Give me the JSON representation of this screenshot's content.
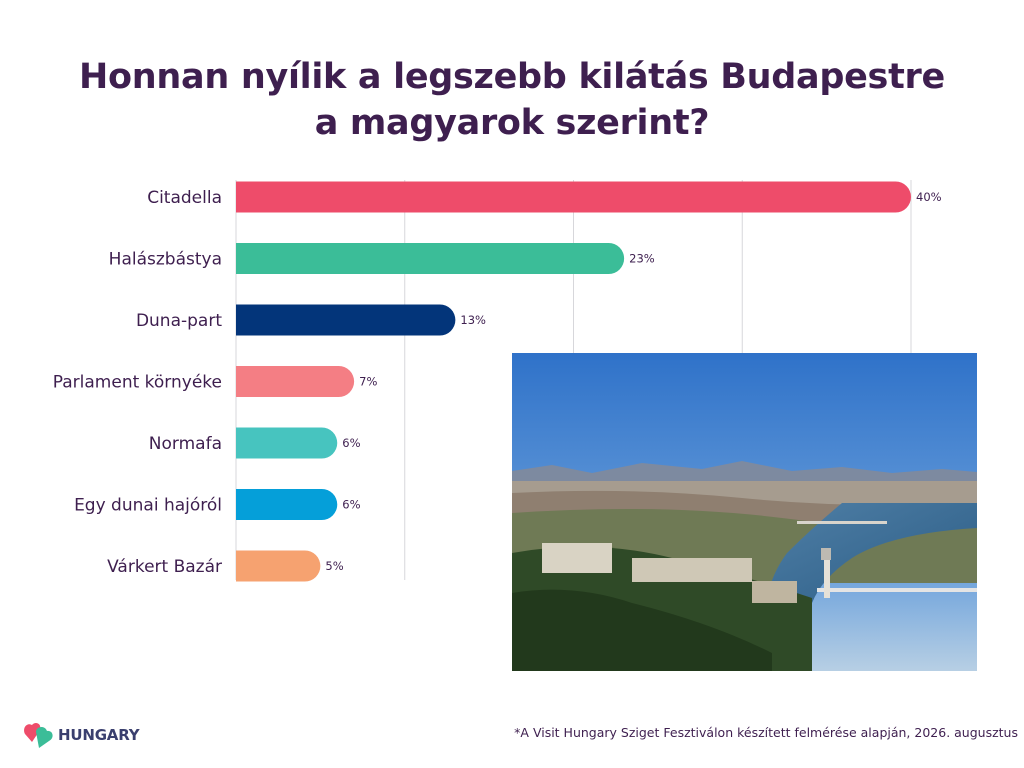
{
  "title": {
    "line1": "Honnan nyílik a legszebb kilátás Budapestre",
    "line2": "a magyarok szerint?"
  },
  "chart_data": {
    "type": "bar",
    "orientation": "horizontal",
    "categories": [
      "Citadella",
      "Halászbástya",
      "Duna-part",
      "Parlament környéke",
      "Normafa",
      "Egy dunai hajóról",
      "Várkert Bazár"
    ],
    "values": [
      40,
      23,
      13,
      7,
      6,
      6,
      5
    ],
    "value_labels": [
      "40%",
      "23%",
      "13%",
      "7%",
      "6%",
      "6%",
      "5%"
    ],
    "unit": "%",
    "bar_colors": [
      "#ee4c6a",
      "#3bbd98",
      "#03357a",
      "#f47e84",
      "#47c4bf",
      "#059fd9",
      "#f6a270"
    ],
    "xlim": [
      0,
      40
    ],
    "grid": true,
    "legend": "none"
  },
  "photo": {
    "icon": "citadella-panorama-photo"
  },
  "logo": {
    "text": "HUNGARY",
    "icon": "visit-hungary-heart-logo",
    "colors": [
      "#ee4c6a",
      "#3bbd98"
    ]
  },
  "footnote": "*A Visit Hungary Sziget Fesztiválon készített felmérése alapján, 2026. augusztus",
  "colors": {
    "title": "#3e1f4f",
    "grid": "#d7d7db"
  }
}
